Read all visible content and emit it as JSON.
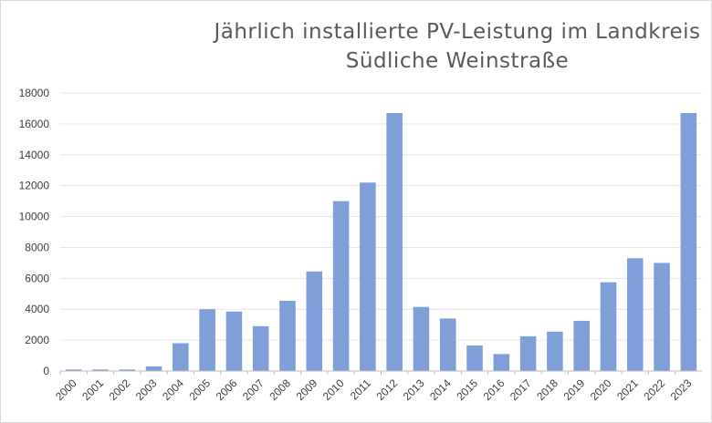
{
  "colors": {
    "bar": "#7f9fd8",
    "grid": "#e6e6e6",
    "axis": "#bfbfbf",
    "text": "#404040",
    "title": "#595959"
  },
  "chart_data": {
    "type": "bar",
    "title_lines": [
      "Jährlich installierte PV-Leistung im Landkreis",
      "Südliche Weinstraße"
    ],
    "xlabel": "",
    "ylabel": "",
    "categories": [
      "2000",
      "2001",
      "2002",
      "2003",
      "2004",
      "2005",
      "2006",
      "2007",
      "2008",
      "2009",
      "2010",
      "2011",
      "2012",
      "2013",
      "2014",
      "2015",
      "2016",
      "2017",
      "2018",
      "2019",
      "2020",
      "2021",
      "2022",
      "2023"
    ],
    "values": [
      100,
      100,
      100,
      300,
      1800,
      4000,
      3850,
      2900,
      4550,
      6450,
      11000,
      12200,
      16700,
      4150,
      3400,
      1650,
      1100,
      2250,
      2550,
      3250,
      5750,
      7300,
      7000,
      16700
    ],
    "ylim": [
      0,
      18000
    ],
    "yticks": [
      "0",
      "2000",
      "4000",
      "6000",
      "8000",
      "10000",
      "12000",
      "14000",
      "16000",
      "18000"
    ],
    "grid": true,
    "legend": "none"
  }
}
